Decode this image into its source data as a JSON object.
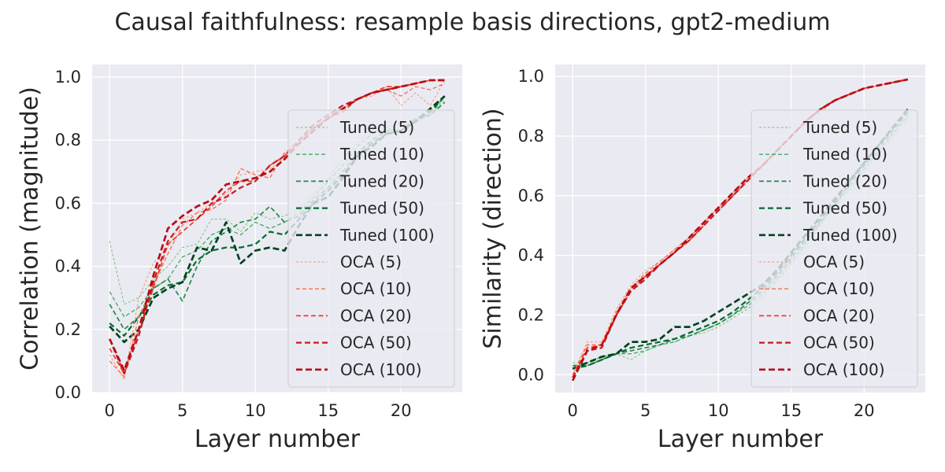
{
  "figure": {
    "title": "Causal faithfulness: resample basis directions, gpt2-medium"
  },
  "palette": {
    "background": "#eaeaf2",
    "grid": "#ffffff",
    "text": "#262626",
    "tuned": [
      "#74c476",
      "#41ab5d",
      "#238b45",
      "#006d2c",
      "#00441b"
    ],
    "oca": [
      "#fc9272",
      "#fb6a4a",
      "#ef3b2c",
      "#cb181d",
      "#b80e14"
    ]
  },
  "chart_data": [
    {
      "type": "line",
      "ylabel": "Correlation (magnitude)",
      "xlabel": "Layer number",
      "xlim": [
        -1.2,
        24.2
      ],
      "ylim": [
        0,
        1.04
      ],
      "xticks": [
        0,
        5,
        10,
        15,
        20
      ],
      "yticks": [
        0.0,
        0.2,
        0.4,
        0.6,
        0.8,
        1.0
      ],
      "grid": true,
      "legend_position": "right",
      "x": [
        0,
        1,
        2,
        3,
        4,
        5,
        6,
        7,
        8,
        9,
        10,
        11,
        12,
        13,
        14,
        15,
        16,
        17,
        18,
        19,
        20,
        21,
        22,
        23
      ],
      "series": [
        {
          "name": "Tuned (5)",
          "group": "tuned",
          "values": [
            0.48,
            0.28,
            0.3,
            0.36,
            0.4,
            0.46,
            0.47,
            0.55,
            0.55,
            0.51,
            0.57,
            0.55,
            0.56,
            0.58,
            0.63,
            0.68,
            0.74,
            0.79,
            0.84,
            0.86,
            0.85,
            0.87,
            0.88,
            0.93
          ]
        },
        {
          "name": "Tuned (10)",
          "group": "tuned",
          "values": [
            0.32,
            0.24,
            0.27,
            0.33,
            0.36,
            0.43,
            0.45,
            0.5,
            0.52,
            0.5,
            0.54,
            0.52,
            0.54,
            0.57,
            0.62,
            0.67,
            0.72,
            0.78,
            0.82,
            0.84,
            0.82,
            0.86,
            0.88,
            0.94
          ]
        },
        {
          "name": "Tuned (20)",
          "group": "tuned",
          "values": [
            0.28,
            0.2,
            0.24,
            0.33,
            0.36,
            0.29,
            0.4,
            0.48,
            0.51,
            0.54,
            0.55,
            0.59,
            0.54,
            0.56,
            0.61,
            0.65,
            0.7,
            0.76,
            0.8,
            0.83,
            0.83,
            0.87,
            0.88,
            0.92
          ]
        },
        {
          "name": "Tuned (50)",
          "group": "tuned",
          "values": [
            0.22,
            0.18,
            0.24,
            0.31,
            0.34,
            0.35,
            0.42,
            0.45,
            0.46,
            0.46,
            0.47,
            0.51,
            0.5,
            0.55,
            0.6,
            0.64,
            0.69,
            0.75,
            0.79,
            0.82,
            0.83,
            0.86,
            0.89,
            0.94
          ]
        },
        {
          "name": "Tuned (100)",
          "group": "tuned",
          "values": [
            0.21,
            0.16,
            0.2,
            0.3,
            0.33,
            0.35,
            0.46,
            0.45,
            0.54,
            0.41,
            0.45,
            0.46,
            0.45,
            0.53,
            0.6,
            0.62,
            0.68,
            0.75,
            0.78,
            0.82,
            0.83,
            0.86,
            0.9,
            0.94
          ]
        },
        {
          "name": "OCA (5)",
          "group": "oca",
          "values": [
            0.12,
            0.04,
            0.3,
            0.41,
            0.46,
            0.55,
            0.57,
            0.6,
            0.63,
            0.69,
            0.7,
            0.71,
            0.74,
            0.79,
            0.84,
            0.87,
            0.9,
            0.93,
            0.94,
            0.97,
            0.91,
            0.95,
            0.91,
            0.99
          ]
        },
        {
          "name": "OCA (10)",
          "group": "oca",
          "values": [
            0.1,
            0.05,
            0.24,
            0.34,
            0.44,
            0.53,
            0.57,
            0.58,
            0.61,
            0.71,
            0.69,
            0.68,
            0.76,
            0.79,
            0.84,
            0.87,
            0.9,
            0.93,
            0.95,
            0.96,
            0.94,
            0.97,
            0.96,
            0.98
          ]
        },
        {
          "name": "OCA (20)",
          "group": "oca",
          "values": [
            0.14,
            0.06,
            0.2,
            0.33,
            0.47,
            0.51,
            0.55,
            0.59,
            0.64,
            0.67,
            0.67,
            0.72,
            0.75,
            0.8,
            0.84,
            0.87,
            0.89,
            0.93,
            0.95,
            0.97,
            0.97,
            0.98,
            0.99,
            0.99
          ]
        },
        {
          "name": "OCA (50)",
          "group": "oca",
          "values": [
            0.17,
            0.06,
            0.18,
            0.35,
            0.48,
            0.54,
            0.55,
            0.6,
            0.62,
            0.65,
            0.67,
            0.72,
            0.75,
            0.8,
            0.85,
            0.88,
            0.91,
            0.93,
            0.95,
            0.96,
            0.97,
            0.98,
            0.99,
            0.99
          ]
        },
        {
          "name": "OCA (100)",
          "group": "oca",
          "values": [
            0.17,
            0.07,
            0.2,
            0.37,
            0.52,
            0.56,
            0.59,
            0.61,
            0.66,
            0.67,
            0.68,
            0.7,
            0.74,
            0.79,
            0.83,
            0.87,
            0.9,
            0.93,
            0.95,
            0.96,
            0.97,
            0.98,
            0.99,
            0.99
          ]
        }
      ]
    },
    {
      "type": "line",
      "ylabel": "Similarity (direction)",
      "xlabel": "Layer number",
      "xlim": [
        -1.2,
        24.2
      ],
      "ylim": [
        -0.06,
        1.04
      ],
      "xticks": [
        0,
        5,
        10,
        15,
        20
      ],
      "yticks": [
        0.0,
        0.2,
        0.4,
        0.6,
        0.8,
        1.0
      ],
      "grid": true,
      "legend_position": "right",
      "x": [
        0,
        1,
        2,
        3,
        4,
        5,
        6,
        7,
        8,
        9,
        10,
        11,
        12,
        13,
        14,
        15,
        16,
        17,
        18,
        19,
        20,
        21,
        22,
        23
      ],
      "series": [
        {
          "name": "Tuned (5)",
          "group": "tuned",
          "values": [
            0.04,
            0.04,
            0.06,
            0.07,
            0.05,
            0.08,
            0.1,
            0.11,
            0.13,
            0.14,
            0.16,
            0.19,
            0.22,
            0.26,
            0.31,
            0.37,
            0.43,
            0.5,
            0.56,
            0.62,
            0.68,
            0.74,
            0.8,
            0.86
          ]
        },
        {
          "name": "Tuned (10)",
          "group": "tuned",
          "values": [
            0.03,
            0.04,
            0.06,
            0.07,
            0.07,
            0.08,
            0.1,
            0.11,
            0.13,
            0.15,
            0.17,
            0.2,
            0.23,
            0.27,
            0.32,
            0.38,
            0.44,
            0.51,
            0.57,
            0.63,
            0.69,
            0.75,
            0.81,
            0.87
          ]
        },
        {
          "name": "Tuned (20)",
          "group": "tuned",
          "values": [
            0.03,
            0.03,
            0.05,
            0.07,
            0.08,
            0.09,
            0.1,
            0.12,
            0.13,
            0.15,
            0.17,
            0.2,
            0.24,
            0.28,
            0.33,
            0.39,
            0.45,
            0.51,
            0.57,
            0.64,
            0.7,
            0.76,
            0.82,
            0.88
          ]
        },
        {
          "name": "Tuned (50)",
          "group": "tuned",
          "values": [
            0.02,
            0.03,
            0.05,
            0.07,
            0.09,
            0.1,
            0.11,
            0.12,
            0.14,
            0.16,
            0.18,
            0.21,
            0.25,
            0.29,
            0.34,
            0.4,
            0.46,
            0.52,
            0.58,
            0.65,
            0.71,
            0.77,
            0.83,
            0.89
          ]
        },
        {
          "name": "Tuned (100)",
          "group": "tuned",
          "values": [
            0.02,
            0.04,
            0.06,
            0.07,
            0.11,
            0.11,
            0.12,
            0.16,
            0.16,
            0.18,
            0.21,
            0.24,
            0.27,
            0.3,
            0.35,
            0.41,
            0.47,
            0.53,
            0.59,
            0.65,
            0.71,
            0.77,
            0.83,
            0.89
          ]
        },
        {
          "name": "OCA (5)",
          "group": "oca",
          "values": [
            0.0,
            0.11,
            0.11,
            0.22,
            0.3,
            0.35,
            0.38,
            0.42,
            0.46,
            0.51,
            0.55,
            0.6,
            0.65,
            0.7,
            0.75,
            0.8,
            0.84,
            0.88,
            0.92,
            0.94,
            0.96,
            0.97,
            0.98,
            0.99
          ]
        },
        {
          "name": "OCA (10)",
          "group": "oca",
          "values": [
            0.0,
            0.1,
            0.1,
            0.21,
            0.29,
            0.34,
            0.38,
            0.42,
            0.46,
            0.51,
            0.56,
            0.61,
            0.66,
            0.7,
            0.75,
            0.8,
            0.85,
            0.89,
            0.92,
            0.94,
            0.96,
            0.97,
            0.98,
            0.99
          ]
        },
        {
          "name": "OCA (20)",
          "group": "oca",
          "values": [
            -0.01,
            0.09,
            0.1,
            0.2,
            0.28,
            0.33,
            0.37,
            0.41,
            0.45,
            0.5,
            0.55,
            0.6,
            0.65,
            0.7,
            0.75,
            0.8,
            0.85,
            0.89,
            0.92,
            0.94,
            0.96,
            0.97,
            0.98,
            0.99
          ]
        },
        {
          "name": "OCA (50)",
          "group": "oca",
          "values": [
            -0.01,
            0.08,
            0.09,
            0.2,
            0.28,
            0.32,
            0.37,
            0.41,
            0.45,
            0.5,
            0.55,
            0.6,
            0.65,
            0.7,
            0.75,
            0.8,
            0.85,
            0.89,
            0.92,
            0.94,
            0.96,
            0.97,
            0.98,
            0.99
          ]
        },
        {
          "name": "OCA (100)",
          "group": "oca",
          "values": [
            -0.02,
            0.08,
            0.1,
            0.2,
            0.29,
            0.33,
            0.37,
            0.41,
            0.46,
            0.51,
            0.56,
            0.61,
            0.66,
            0.7,
            0.75,
            0.8,
            0.85,
            0.89,
            0.92,
            0.94,
            0.96,
            0.97,
            0.98,
            0.99
          ]
        }
      ]
    }
  ]
}
